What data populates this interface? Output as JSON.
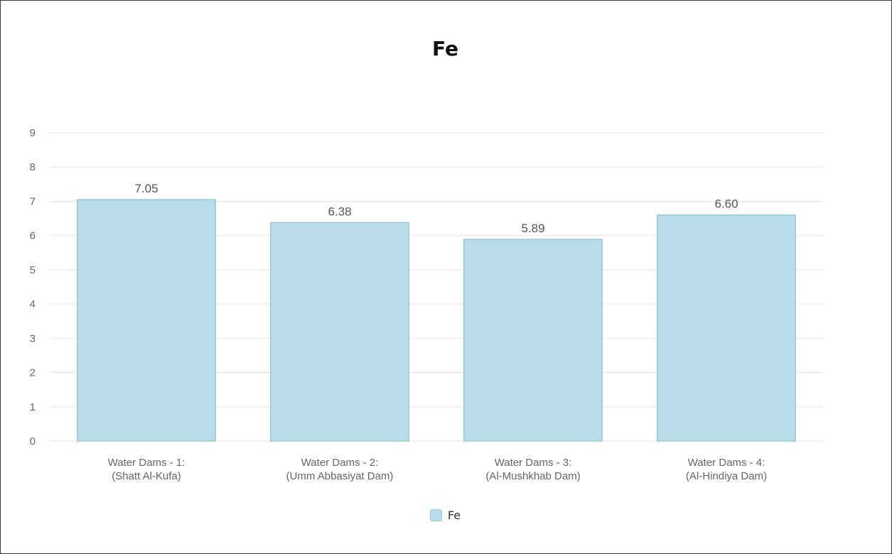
{
  "chart_data": {
    "type": "bar",
    "title": "Fe",
    "categories": [
      [
        "Water Dams - 1:",
        "(Shatt Al-Kufa)"
      ],
      [
        "Water Dams - 2:",
        "(Umm Abbasiyat Dam)"
      ],
      [
        "Water Dams - 3:",
        "(Al-Mushkhab Dam)"
      ],
      [
        "Water Dams - 4:",
        "(Al-Hindiya Dam)"
      ]
    ],
    "series": [
      {
        "name": "Fe",
        "values": [
          7.05,
          6.38,
          5.89,
          6.6
        ],
        "labels": [
          "7.05",
          "6.38",
          "5.89",
          "6.60"
        ]
      }
    ],
    "ylim": [
      0,
      9
    ],
    "yticks": [
      "0",
      "1",
      "2",
      "3",
      "4",
      "5",
      "6",
      "7",
      "8",
      "9"
    ],
    "grid": true,
    "legend_position": "bottom",
    "colors": {
      "bar_fill": "#b9dce8",
      "bar_stroke": "#9ccbdc",
      "grid": "#e6e6e6"
    }
  }
}
